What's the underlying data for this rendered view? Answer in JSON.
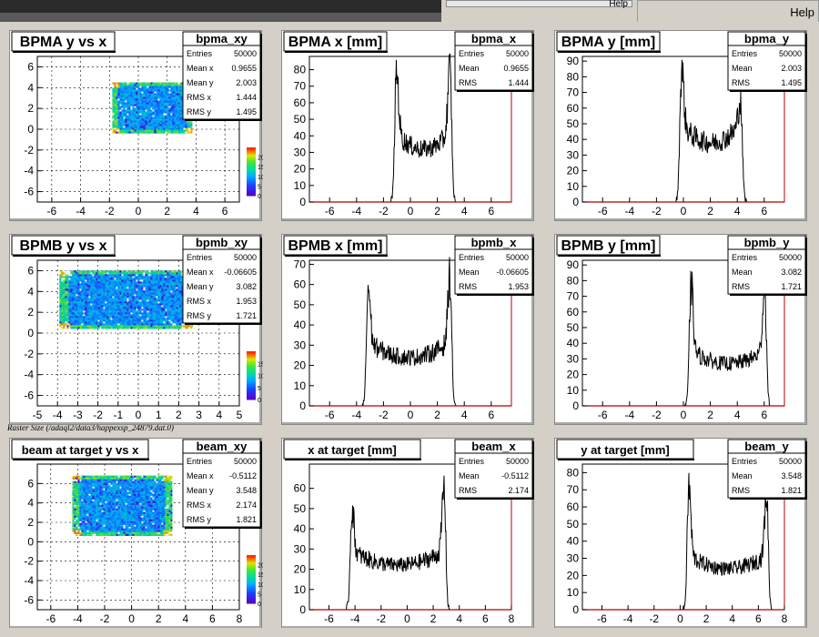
{
  "window": {
    "help_label": "Help"
  },
  "caption": "Raster Size (/adaql2/data3/happexsp_24879.dat.0)",
  "pads": [
    {
      "title": "BPMA y vs x",
      "stats_name": "bpma_xy",
      "stats": [
        [
          "Entries",
          "50000"
        ],
        [
          "Mean x",
          "0.9655"
        ],
        [
          "Mean y",
          "2.003"
        ],
        [
          "RMS x",
          "1.444"
        ],
        [
          "RMS y",
          "1.495"
        ]
      ]
    },
    {
      "title": "BPMA x [mm]",
      "stats_name": "bpma_x",
      "stats": [
        [
          "Entries",
          "50000"
        ],
        [
          "Mean",
          "0.9655"
        ],
        [
          "RMS",
          "1.444"
        ]
      ]
    },
    {
      "title": "BPMA y [mm]",
      "stats_name": "bpma_y",
      "stats": [
        [
          "Entries",
          "50000"
        ],
        [
          "Mean",
          "2.003"
        ],
        [
          "RMS",
          "1.495"
        ]
      ]
    },
    {
      "title": "BPMB y vs x",
      "stats_name": "bpmb_xy",
      "stats": [
        [
          "Entries",
          "50000"
        ],
        [
          "Mean x",
          "-0.06605"
        ],
        [
          "Mean y",
          "3.082"
        ],
        [
          "RMS x",
          "1.953"
        ],
        [
          "RMS y",
          "1.721"
        ]
      ]
    },
    {
      "title": "BPMB x [mm]",
      "stats_name": "bpmb_x",
      "stats": [
        [
          "Entries",
          "50000"
        ],
        [
          "Mean",
          "-0.06605"
        ],
        [
          "RMS",
          "1.953"
        ]
      ]
    },
    {
      "title": "BPMB y [mm]",
      "stats_name": "bpmb_y",
      "stats": [
        [
          "Entries",
          "50000"
        ],
        [
          "Mean",
          "3.082"
        ],
        [
          "RMS",
          "1.721"
        ]
      ]
    },
    {
      "title": "beam at target y vs x",
      "stats_name": "beam_xy",
      "stats": [
        [
          "Entries",
          "50000"
        ],
        [
          "Mean x",
          "-0.5112"
        ],
        [
          "Mean y",
          "3.548"
        ],
        [
          "RMS x",
          "2.174"
        ],
        [
          "RMS y",
          "1.821"
        ]
      ]
    },
    {
      "title": "x at target [mm]",
      "stats_name": "beam_x",
      "stats": [
        [
          "Entries",
          "50000"
        ],
        [
          "Mean",
          "-0.5112"
        ],
        [
          "RMS",
          "2.174"
        ]
      ]
    },
    {
      "title": "y at target [mm]",
      "stats_name": "beam_y",
      "stats": [
        [
          "Entries",
          "50000"
        ],
        [
          "Mean",
          "3.548"
        ],
        [
          "RMS",
          "1.821"
        ]
      ]
    }
  ],
  "chart_data": [
    {
      "type": "heatmap",
      "title": "BPMA y vs x",
      "xlim": [
        -7,
        7
      ],
      "ylim": [
        -7,
        7
      ],
      "xticks": [
        -6,
        -4,
        -2,
        0,
        2,
        4,
        6
      ],
      "yticks": [
        -6,
        -4,
        -2,
        0,
        2,
        4,
        6
      ],
      "region": {
        "x": [
          -1.8,
          3.7
        ],
        "y": [
          -0.4,
          4.5
        ]
      },
      "colorbar": {
        "ticks": [
          0,
          5,
          10,
          15,
          20
        ],
        "max": 25
      },
      "grid": true
    },
    {
      "type": "bar",
      "title": "BPMA x [mm]",
      "xlim": [
        -7.5,
        7.5
      ],
      "ylim": [
        0,
        88
      ],
      "xticks": [
        -6,
        -4,
        -2,
        0,
        2,
        4,
        6
      ],
      "yticks": [
        0,
        10,
        20,
        30,
        40,
        50,
        60,
        70,
        80
      ],
      "shape": {
        "lo": -1.2,
        "hi": 3.1,
        "peak_lo": 83,
        "peak_hi": 85,
        "mid": 32
      }
    },
    {
      "type": "bar",
      "title": "BPMA y [mm]",
      "xlim": [
        -7.5,
        7.5
      ],
      "ylim": [
        0,
        93
      ],
      "xticks": [
        -6,
        -4,
        -2,
        0,
        2,
        4,
        6
      ],
      "yticks": [
        0,
        10,
        20,
        30,
        40,
        50,
        60,
        70,
        80,
        90
      ],
      "shape": {
        "lo": -0.3,
        "hi": 4.4,
        "peak_lo": 90,
        "peak_hi": 68,
        "mid": 38
      }
    },
    {
      "type": "heatmap",
      "title": "BPMB y vs x",
      "xlim": [
        -5,
        5
      ],
      "ylim": [
        -7,
        7
      ],
      "xticks": [
        -5,
        -4,
        -3,
        -2,
        -1,
        0,
        1,
        2,
        3,
        4,
        5
      ],
      "yticks": [
        -6,
        -4,
        -2,
        0,
        2,
        4,
        6
      ],
      "region": {
        "x": [
          -3.9,
          2.7
        ],
        "y": [
          0.4,
          6.0
        ]
      },
      "colorbar": {
        "ticks": [
          0,
          5,
          10,
          15
        ],
        "max": 20
      },
      "grid": true
    },
    {
      "type": "bar",
      "title": "BPMB x [mm]",
      "xlim": [
        -7.5,
        7.5
      ],
      "ylim": [
        0,
        72
      ],
      "xticks": [
        -6,
        -4,
        -2,
        0,
        2,
        4,
        6
      ],
      "yticks": [
        0,
        10,
        20,
        30,
        40,
        50,
        60,
        70
      ],
      "shape": {
        "lo": -3.3,
        "hi": 3.1,
        "peak_lo": 62,
        "peak_hi": 68,
        "mid": 24
      }
    },
    {
      "type": "bar",
      "title": "BPMB y [mm]",
      "xlim": [
        -7.5,
        7.5
      ],
      "ylim": [
        0,
        93
      ],
      "xticks": [
        -6,
        -4,
        -2,
        0,
        2,
        4,
        6
      ],
      "yticks": [
        0,
        10,
        20,
        30,
        40,
        50,
        60,
        70,
        80,
        90
      ],
      "shape": {
        "lo": 0.4,
        "hi": 6.2,
        "peak_lo": 82,
        "peak_hi": 80,
        "mid": 27
      }
    },
    {
      "type": "heatmap",
      "title": "beam at target y vs x",
      "xlim": [
        -7,
        8
      ],
      "ylim": [
        -7,
        8
      ],
      "xticks": [
        -6,
        -4,
        -2,
        0,
        2,
        4,
        6,
        8
      ],
      "yticks": [
        -6,
        -4,
        -2,
        0,
        2,
        4,
        6
      ],
      "region": {
        "x": [
          -4.4,
          3.0
        ],
        "y": [
          0.6,
          6.8
        ]
      },
      "colorbar": {
        "ticks": [
          0,
          5,
          10,
          15,
          20
        ],
        "max": 25
      },
      "grid": true
    },
    {
      "type": "bar",
      "title": "x at target [mm]",
      "xlim": [
        -7.5,
        8
      ],
      "ylim": [
        0,
        72
      ],
      "xticks": [
        -6,
        -4,
        -2,
        0,
        2,
        4,
        6,
        8
      ],
      "yticks": [
        0,
        10,
        20,
        30,
        40,
        50,
        60
      ],
      "shape": {
        "lo": -4.4,
        "hi": 3.0,
        "peak_lo": 53,
        "peak_hi": 64,
        "mid": 22
      }
    },
    {
      "type": "bar",
      "title": "y at target [mm]",
      "xlim": [
        -7.5,
        8
      ],
      "ylim": [
        0,
        85
      ],
      "xticks": [
        -6,
        -4,
        -2,
        0,
        2,
        4,
        6,
        8
      ],
      "yticks": [
        0,
        10,
        20,
        30,
        40,
        50,
        60,
        70,
        80
      ],
      "shape": {
        "lo": 0.5,
        "hi": 6.8,
        "peak_lo": 76,
        "peak_hi": 72,
        "mid": 24
      }
    }
  ]
}
